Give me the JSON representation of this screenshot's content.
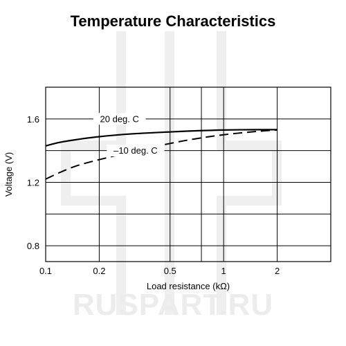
{
  "watermark": {
    "text": "RUSPART.RU"
  },
  "chart_data": {
    "type": "line",
    "title": "Temperature Characteristics",
    "xlabel": "Load resistance (kΩ)",
    "ylabel": "Voltage (V)",
    "x_scale": "log",
    "xlim": [
      0.1,
      4.0
    ],
    "ylim": [
      0.7,
      1.8
    ],
    "x_ticks": [
      {
        "value": 0.1,
        "label": "0.1"
      },
      {
        "value": 0.2,
        "label": "0.2"
      },
      {
        "value": 0.5,
        "label": "0.5"
      },
      {
        "value": 1,
        "label": "1"
      },
      {
        "value": 2,
        "label": "2"
      }
    ],
    "x_grid": [
      0.2,
      0.5,
      0.75,
      1,
      2
    ],
    "y_ticks": [
      {
        "value": 0.8,
        "label": "0.8"
      },
      {
        "value": 1.2,
        "label": "1.2"
      },
      {
        "value": 1.6,
        "label": "1.6"
      }
    ],
    "y_grid": [
      0.8,
      1.0,
      1.2,
      1.4,
      1.6
    ],
    "grid": true,
    "series": [
      {
        "name": "20 deg. C",
        "style": "solid",
        "x": [
          0.1,
          0.12,
          0.15,
          0.2,
          0.3,
          0.5,
          0.7,
          1,
          1.5,
          2
        ],
        "y": [
          1.43,
          1.452,
          1.47,
          1.488,
          1.505,
          1.518,
          1.525,
          1.53,
          1.532,
          1.532
        ]
      },
      {
        "name": "–10 deg. C",
        "style": "dashed",
        "x": [
          0.1,
          0.12,
          0.15,
          0.2,
          0.3,
          0.5,
          0.7,
          1,
          1.5,
          2
        ],
        "y": [
          1.22,
          1.262,
          1.305,
          1.343,
          1.39,
          1.445,
          1.475,
          1.5,
          1.52,
          1.53
        ]
      }
    ],
    "annotations": [
      {
        "text": "20 deg. C",
        "x": 0.26,
        "y": 1.585,
        "anchor": "middle"
      },
      {
        "text": "–10 deg. C",
        "x": 0.32,
        "y": 1.385,
        "anchor": "middle"
      }
    ]
  }
}
